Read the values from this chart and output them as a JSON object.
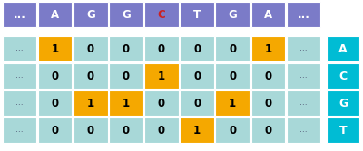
{
  "top_labels": [
    "...",
    "A",
    "G",
    "G",
    "C",
    "T",
    "G",
    "A",
    "..."
  ],
  "top_label_colors": [
    "normal",
    "normal",
    "normal",
    "normal",
    "red",
    "normal",
    "normal",
    "normal",
    "normal"
  ],
  "top_bg_color": "#7b7bc8",
  "top_red_color": "#cc2222",
  "top_text_color": "#ffffff",
  "matrix": [
    [
      0,
      1,
      0,
      0,
      0,
      0,
      0,
      1,
      0
    ],
    [
      0,
      0,
      0,
      0,
      1,
      0,
      0,
      0,
      0
    ],
    [
      0,
      0,
      1,
      1,
      0,
      0,
      1,
      0,
      0
    ],
    [
      0,
      0,
      0,
      0,
      0,
      1,
      0,
      0,
      0
    ]
  ],
  "row_labels": [
    "A",
    "C",
    "G",
    "T"
  ],
  "cell_bg": "#a8d8d8",
  "one_bg": "#f5a800",
  "row_label_bg": "#00bcd4",
  "row_label_text": "#ffffff",
  "dots_text": "...",
  "background": "#ffffff",
  "fig_w": 4.0,
  "fig_h": 1.67,
  "dpi": 100
}
